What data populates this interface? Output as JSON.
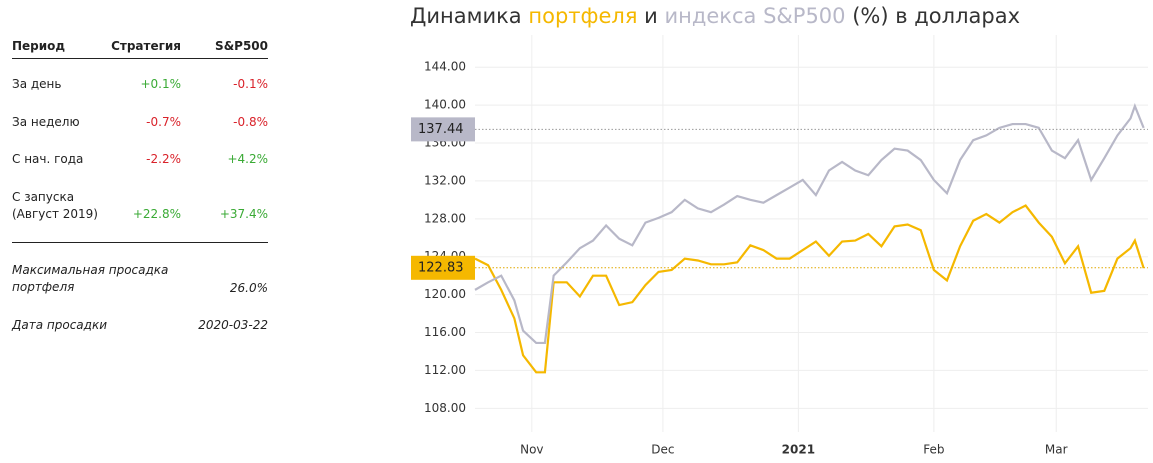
{
  "table": {
    "header": [
      "Период",
      "Стратегия",
      "S&P500"
    ],
    "rows": [
      [
        "За день",
        "+0.1%",
        "-0.1%"
      ],
      [
        "За неделю",
        "-0.7%",
        "-0.8%"
      ],
      [
        "С нач. года",
        "-2.2%",
        "+4.2%"
      ],
      [
        "С запуска\n(Август 2019)",
        "+22.8%",
        "+37.4%"
      ]
    ],
    "drawdown": {
      "label": "Максимальная просадка портфеля",
      "value": "26.0%"
    },
    "drawdown_date": {
      "label": "Дата просадки",
      "value": "2020-03-22"
    }
  },
  "chart_data": {
    "type": "line",
    "title": [
      "Динамика",
      "портфеля",
      "и",
      "индекса S&P500",
      "(%) в долларах"
    ],
    "x": [
      "Oct 19",
      "Oct 22",
      "Oct 25",
      "Oct 28",
      "Oct 30",
      "Nov 2",
      "Nov 4",
      "Nov 6",
      "Nov 9",
      "Nov 12",
      "Nov 15",
      "Nov 18",
      "Nov 21",
      "Nov 24",
      "Nov 27",
      "Nov 30",
      "Dec 3",
      "Dec 6",
      "Dec 9",
      "Dec 12",
      "Dec 15",
      "Dec 18",
      "Dec 21",
      "Dec 24",
      "Dec 27",
      "Dec 30",
      "Jan 2",
      "Jan 5",
      "Jan 8",
      "Jan 11",
      "Jan 14",
      "Jan 17",
      "Jan 20",
      "Jan 23",
      "Jan 26",
      "Jan 29",
      "Feb 1",
      "Feb 4",
      "Feb 7",
      "Feb 10",
      "Feb 13",
      "Feb 16",
      "Feb 19",
      "Feb 22",
      "Feb 25",
      "Feb 28",
      "Mar 3",
      "Mar 6",
      "Mar 9",
      "Mar 12",
      "Mar 15",
      "Mar 18",
      "Mar 19",
      "Mar 21"
    ],
    "series": [
      {
        "color": "#f5b800",
        "values": [
          123.8,
          123.1,
          120.5,
          117.5,
          113.6,
          111.8,
          111.8,
          121.3,
          121.3,
          119.8,
          122.0,
          122.0,
          118.9,
          119.2,
          121.0,
          122.4,
          122.6,
          123.8,
          123.6,
          123.2,
          123.2,
          123.4,
          125.2,
          124.7,
          123.8,
          123.8,
          124.7,
          125.6,
          124.1,
          125.6,
          125.7,
          126.4,
          125.1,
          127.2,
          127.4,
          126.8,
          122.6,
          121.5,
          125.1,
          127.8,
          128.5,
          127.6,
          128.7,
          129.4,
          127.6,
          126.1,
          123.3,
          125.1,
          120.2,
          120.4,
          123.8,
          124.9,
          125.7,
          122.8
        ]
      },
      {
        "color": "#b8b8c8",
        "values": [
          120.5,
          121.3,
          122.0,
          119.4,
          116.2,
          114.9,
          114.9,
          122.0,
          123.4,
          124.9,
          125.7,
          127.3,
          125.9,
          125.2,
          127.6,
          128.1,
          128.7,
          130.0,
          129.1,
          128.7,
          129.5,
          130.4,
          130.0,
          129.7,
          130.5,
          131.3,
          132.1,
          130.5,
          133.1,
          134.0,
          133.1,
          132.6,
          134.2,
          135.4,
          135.2,
          134.2,
          132.1,
          130.7,
          134.2,
          136.3,
          136.8,
          137.6,
          138.0,
          138.0,
          137.6,
          135.2,
          134.4,
          136.3,
          132.1,
          134.4,
          136.8,
          138.6,
          139.9,
          137.6
        ]
      }
    ],
    "hlines": [
      {
        "value": 137.44,
        "color": "#b8b8c8"
      },
      {
        "value": 122.83,
        "color": "#f5b800"
      }
    ],
    "xlim": [
      "Oct 19",
      "Mar 22"
    ],
    "xticks": [
      {
        "value": "Nov 1",
        "label": "Nov"
      },
      {
        "value": "Dec 1",
        "label": "Dec"
      },
      {
        "value": "Jan 1",
        "label": "2021"
      },
      {
        "value": "Feb 1",
        "label": "Feb"
      },
      {
        "value": "Mar 1",
        "label": "Mar"
      }
    ],
    "ylim": [
      105.5,
      147.4
    ],
    "yticks": [
      {
        "value": 108,
        "label": "108.00"
      },
      {
        "value": 112,
        "label": "112.00"
      },
      {
        "value": 116,
        "label": "116.00"
      },
      {
        "value": 120,
        "label": "120.00"
      },
      {
        "value": 124,
        "label": "124.00"
      },
      {
        "value": 128,
        "label": "128.00"
      },
      {
        "value": 132,
        "label": "132.00"
      },
      {
        "value": 136,
        "label": "136.00"
      },
      {
        "value": 140,
        "label": "140.00"
      },
      {
        "value": 144,
        "label": "144.00"
      }
    ],
    "grid": true
  }
}
